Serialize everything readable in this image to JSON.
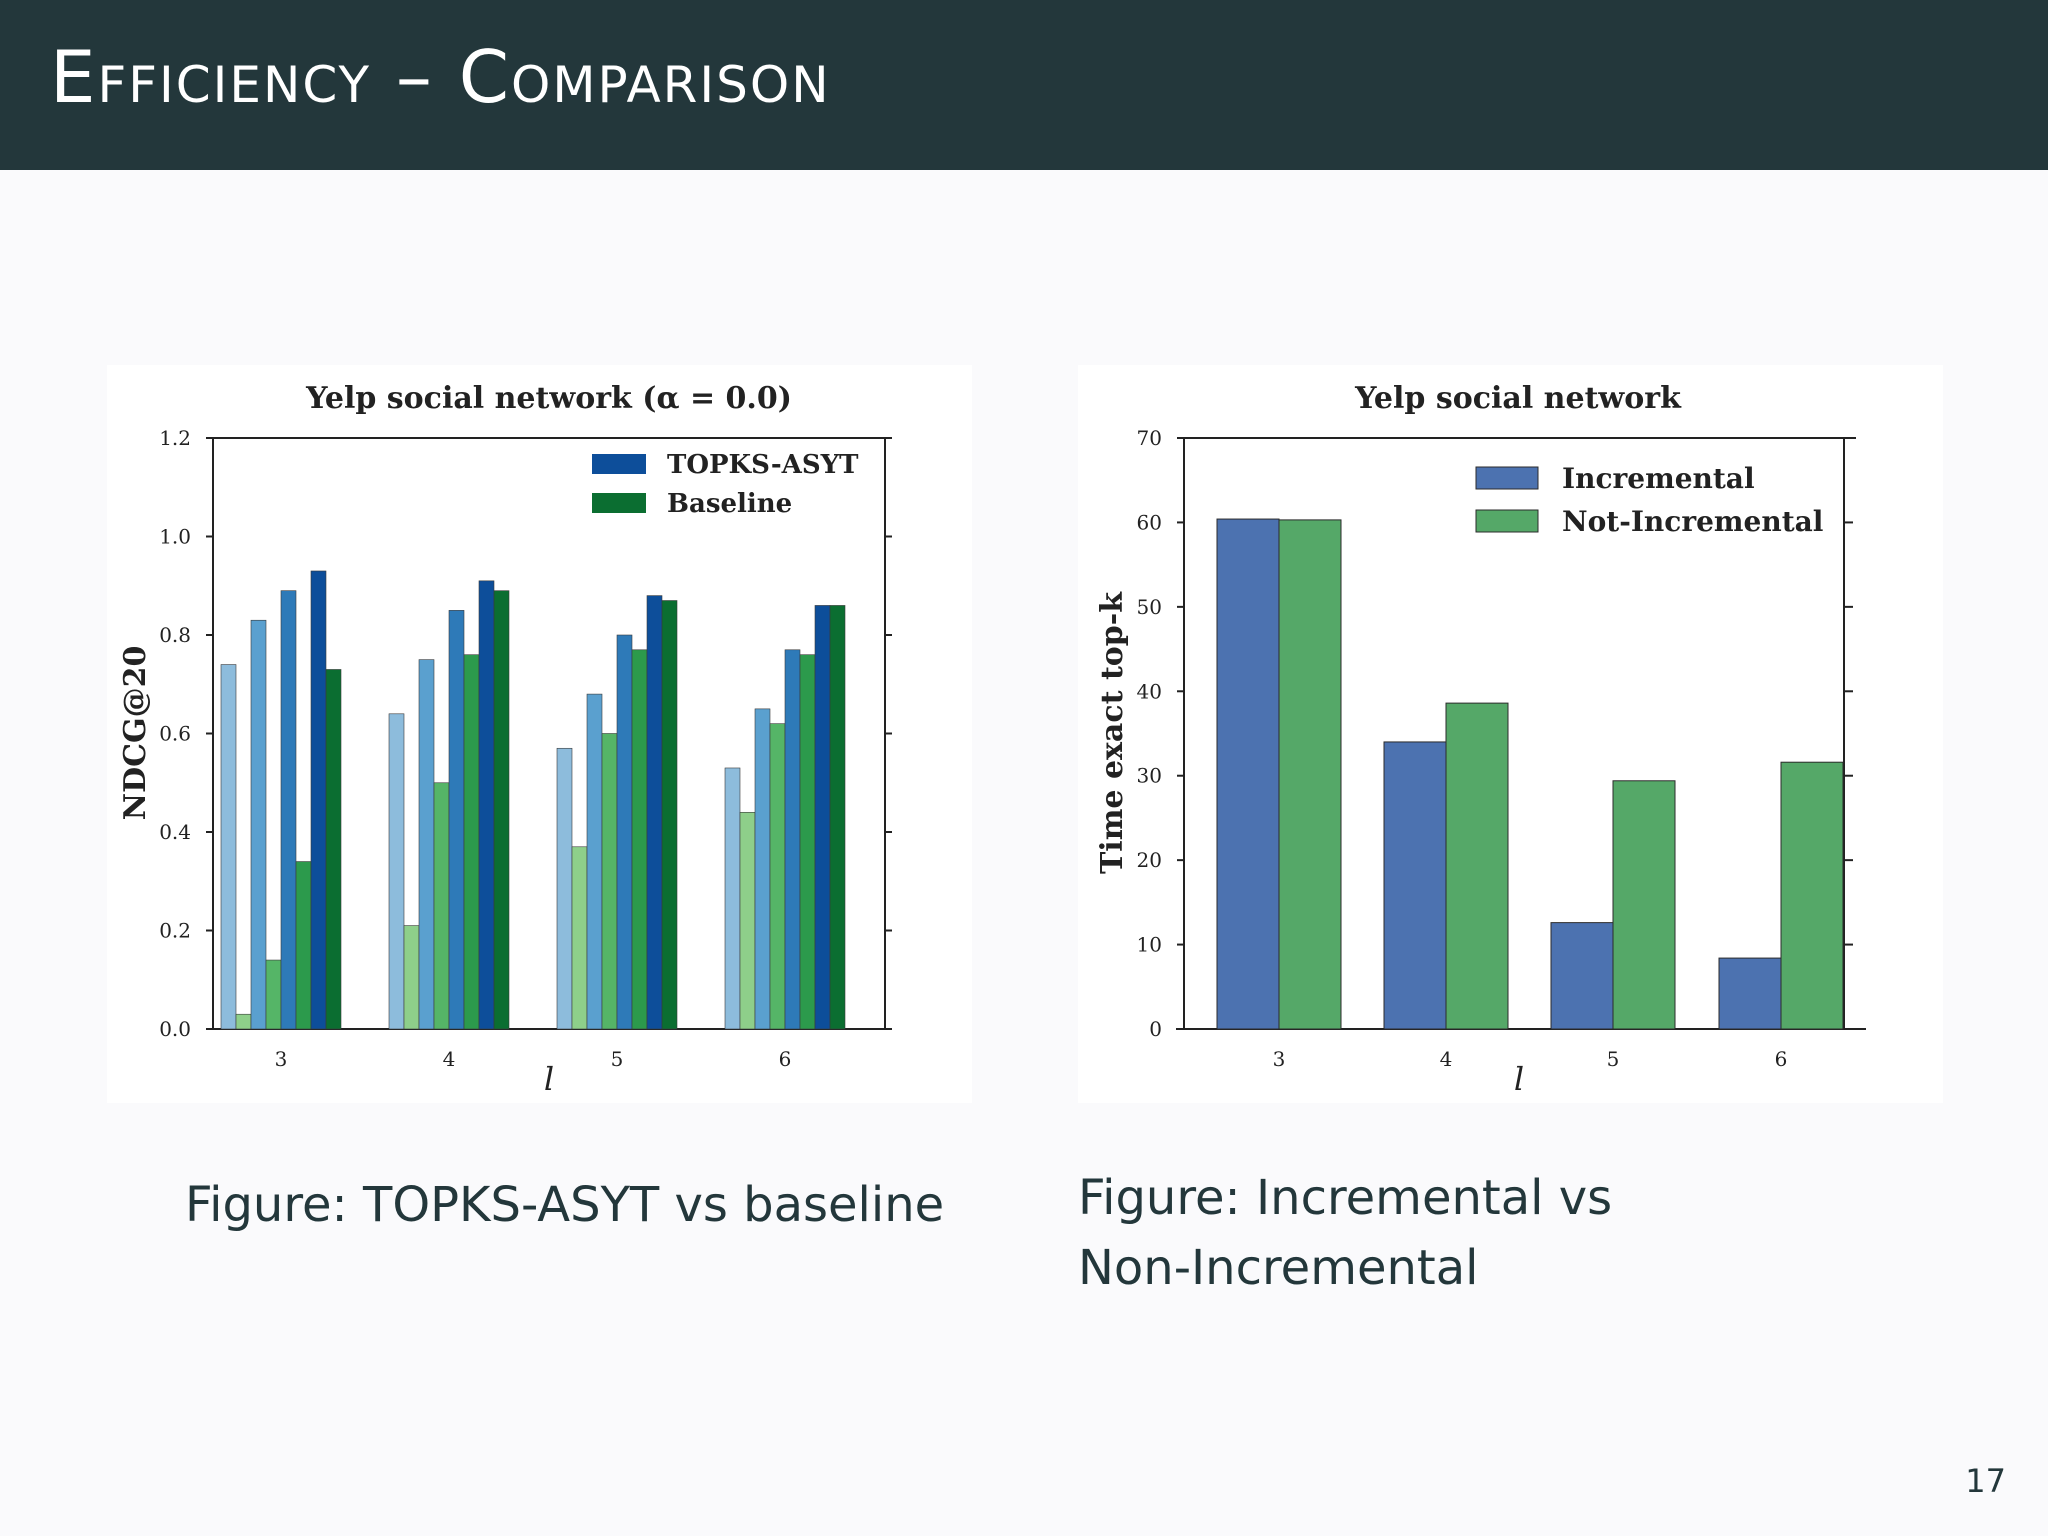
{
  "slide": {
    "title": "Efficiency – Comparison",
    "page_number": "17"
  },
  "captions": [
    {
      "label": "Figure:",
      "text": "TOPKS-ASYT vs baseline"
    },
    {
      "label": "Figure:",
      "text": "Incremental vs Non-Incremental"
    }
  ],
  "chart_data": [
    {
      "type": "bar",
      "title": "Yelp social network (α = 0.0)",
      "xlabel": "l",
      "ylabel": "NDCG@20",
      "ylim": [
        0,
        1.2
      ],
      "yticks": [
        "0.0",
        "0.2",
        "0.4",
        "0.6",
        "0.8",
        "1.0",
        "1.2"
      ],
      "categories": [
        "3",
        "4",
        "5",
        "6"
      ],
      "legend_position": "top-right",
      "legend": [
        {
          "name": "TOPKS-ASYT",
          "color": "#0d4e9a"
        },
        {
          "name": "Baseline",
          "color": "#0b6e31"
        }
      ],
      "series": [
        {
          "group": "TOPKS-ASYT",
          "color": "#8dbcdc",
          "values": [
            0.74,
            0.64,
            0.57,
            0.53
          ]
        },
        {
          "group": "Baseline",
          "color": "#8ecf8a",
          "values": [
            0.03,
            0.21,
            0.37,
            0.44
          ]
        },
        {
          "group": "TOPKS-ASYT",
          "color": "#5aa0cf",
          "values": [
            0.83,
            0.75,
            0.68,
            0.65
          ]
        },
        {
          "group": "Baseline",
          "color": "#55b567",
          "values": [
            0.14,
            0.5,
            0.6,
            0.62
          ]
        },
        {
          "group": "TOPKS-ASYT",
          "color": "#2e7ab8",
          "values": [
            0.89,
            0.85,
            0.8,
            0.77
          ]
        },
        {
          "group": "Baseline",
          "color": "#2c9a4c",
          "values": [
            0.34,
            0.76,
            0.77,
            0.76
          ]
        },
        {
          "group": "TOPKS-ASYT",
          "color": "#0d4e9a",
          "values": [
            0.93,
            0.91,
            0.88,
            0.86
          ]
        },
        {
          "group": "Baseline",
          "color": "#0b6e31",
          "values": [
            0.73,
            0.89,
            0.87,
            0.86
          ]
        }
      ]
    },
    {
      "type": "bar",
      "title": "Yelp social network",
      "xlabel": "l",
      "ylabel": "Time exact top-k",
      "ylim": [
        0,
        70
      ],
      "yticks": [
        "0",
        "10",
        "20",
        "30",
        "40",
        "50",
        "60",
        "70"
      ],
      "categories": [
        "3",
        "4",
        "5",
        "6"
      ],
      "legend_position": "top-right",
      "series": [
        {
          "name": "Incremental",
          "color": "#4c72b0",
          "values": [
            60.4,
            34.0,
            12.6,
            8.4
          ]
        },
        {
          "name": "Not-Incremental",
          "color": "#55a868",
          "values": [
            60.3,
            38.6,
            29.4,
            31.6
          ]
        }
      ]
    }
  ]
}
